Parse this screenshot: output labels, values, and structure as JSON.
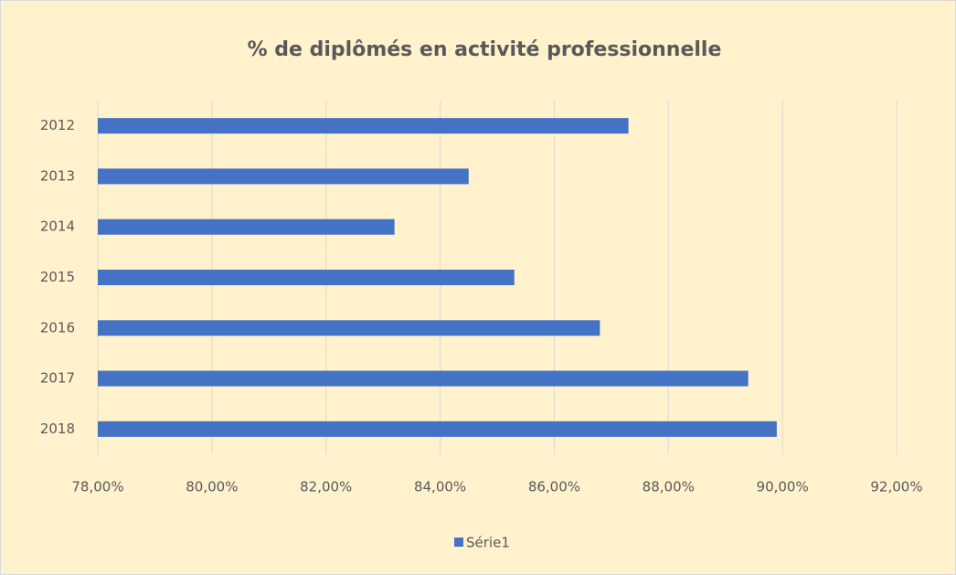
{
  "chart_data": {
    "type": "barh",
    "title": "% de diplômés en activité professionnelle",
    "categories": [
      "2012",
      "2013",
      "2014",
      "2015",
      "2016",
      "2017",
      "2018"
    ],
    "series": [
      {
        "name": "Série1",
        "color": "#4472c4",
        "values": [
          87.3,
          84.5,
          83.2,
          85.3,
          86.8,
          89.4,
          89.9
        ]
      }
    ],
    "xlim": [
      78,
      92
    ],
    "xticks": [
      {
        "value": 78,
        "label": "78,00%"
      },
      {
        "value": 80,
        "label": "80,00%"
      },
      {
        "value": 82,
        "label": "82,00%"
      },
      {
        "value": 84,
        "label": "84,00%"
      },
      {
        "value": 86,
        "label": "86,00%"
      },
      {
        "value": 88,
        "label": "88,00%"
      },
      {
        "value": 90,
        "label": "90,00%"
      },
      {
        "value": 92,
        "label": "92,00%"
      }
    ],
    "grid": true,
    "legend": "bottom"
  }
}
